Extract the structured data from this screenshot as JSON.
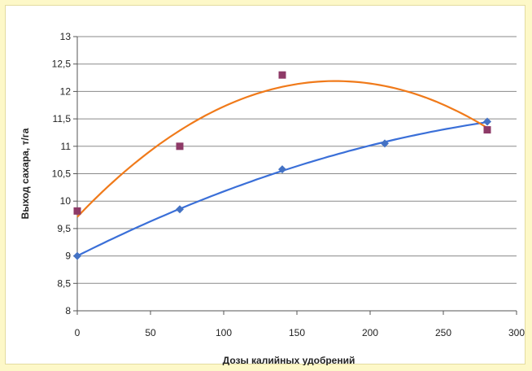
{
  "chart_data": {
    "type": "scatter",
    "title": "",
    "xlabel": "Дозы калийных удобрений",
    "ylabel": "Выход сахара, т/га",
    "xlim": [
      0,
      300
    ],
    "ylim": [
      8,
      13
    ],
    "x_ticks": [
      "0",
      "50",
      "100",
      "150",
      "200",
      "250",
      "300"
    ],
    "y_ticks": [
      "8",
      "8,5",
      "9",
      "9,5",
      "10",
      "10,5",
      "11",
      "11,5",
      "12",
      "12,5",
      "13"
    ],
    "grid": "horizontal",
    "legend": "none",
    "series": [
      {
        "color": "#4472c4",
        "marker": "diamond",
        "trendline": "polynomial",
        "trendline_color": "#3a6fd8",
        "points": [
          [
            0,
            9.0
          ],
          [
            70,
            9.85
          ],
          [
            140,
            10.58
          ],
          [
            210,
            11.05
          ],
          [
            280,
            11.45
          ]
        ]
      },
      {
        "color": "#8e3a67",
        "marker": "square",
        "trendline": "polynomial",
        "trendline_color": "#f07a1a",
        "points": [
          [
            0,
            9.82
          ],
          [
            70,
            11.0
          ],
          [
            140,
            12.3
          ],
          [
            280,
            11.3
          ]
        ]
      }
    ]
  }
}
